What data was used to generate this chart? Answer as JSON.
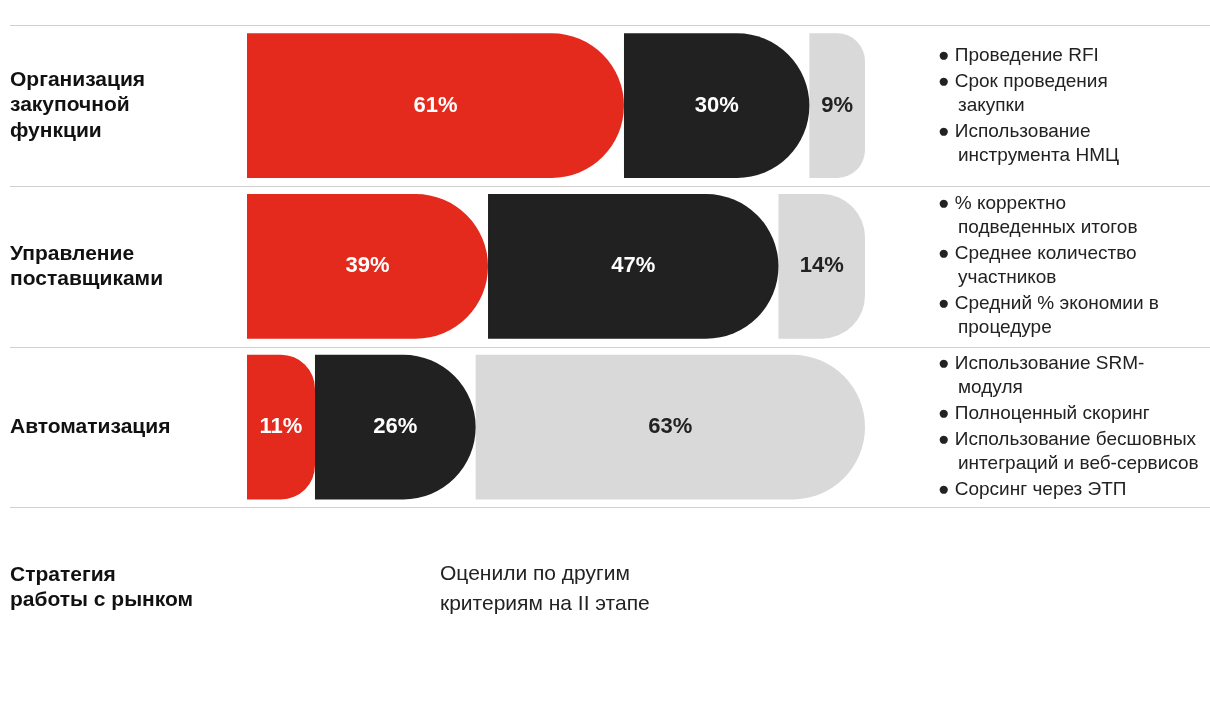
{
  "chart_data": {
    "type": "bar",
    "orientation": "horizontal",
    "stacked": true,
    "categories": [
      "Организация закупочной функции",
      "Управление поставщиками",
      "Автоматизация",
      "Стратегия работы с рынком"
    ],
    "series": [
      {
        "color": "#e42a1d",
        "values": [
          61,
          39,
          11,
          null
        ],
        "value_labels": [
          "61%",
          "39%",
          "11%",
          null
        ]
      },
      {
        "color": "#212121",
        "values": [
          30,
          47,
          26,
          null
        ],
        "value_labels": [
          "30%",
          "47%",
          "26%",
          null
        ]
      },
      {
        "color": "#d9d9d9",
        "values": [
          9,
          14,
          63,
          null
        ],
        "value_labels": [
          "9%",
          "14%",
          "63%",
          null
        ]
      }
    ],
    "xlim": [
      0,
      100
    ],
    "tick_labels": "y",
    "legend": false,
    "annotations": [
      "● Проведение RFI\n● Срок проведения закупки\n● Использование инструмента НМЦ",
      "● % корректно подведенных итогов\n● Среднее количество участников\n● Средний % экономии в процедуре",
      "● Использование SRM-модуля\n● Полноценный скоринг\n● Использование бесшовных интеграций и веб-сервисов\n● Сорсинг через ЭТП",
      "Оценили по другим критериям на II этапе"
    ]
  }
}
